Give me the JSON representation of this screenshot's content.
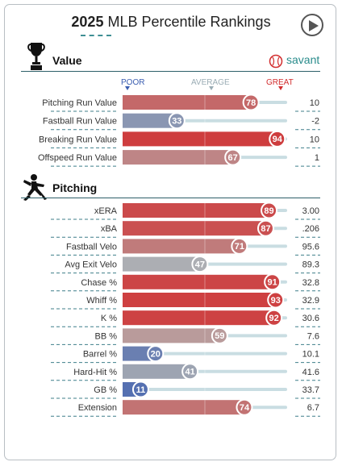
{
  "header": {
    "title_year": "2025",
    "title_rest": "MLB Percentile Rankings"
  },
  "brand": {
    "savant_label": "savant"
  },
  "scale": {
    "poor": "POOR",
    "average": "AVERAGE",
    "great": "GREAT"
  },
  "colors": {
    "low": "#3a5db0",
    "mid": "#b3b3b3",
    "high": "#d22d2e",
    "teal": "#2a8c8c",
    "track": "#c9dde2"
  },
  "sections": [
    {
      "title": "Value",
      "icon": "trophy-icon"
    },
    {
      "title": "Pitching",
      "icon": "pitcher-icon"
    }
  ],
  "chart_data": {
    "type": "bar",
    "xlim": [
      0,
      100
    ],
    "groups": [
      {
        "section": "Value",
        "rows": [
          {
            "label": "Pitching Run Value",
            "percentile": 78,
            "value": "10"
          },
          {
            "label": "Fastball Run Value",
            "percentile": 33,
            "value": "-2"
          },
          {
            "label": "Breaking Run Value",
            "percentile": 94,
            "value": "10"
          },
          {
            "label": "Offspeed Run Value",
            "percentile": 67,
            "value": "1"
          }
        ]
      },
      {
        "section": "Pitching",
        "rows": [
          {
            "label": "xERA",
            "percentile": 89,
            "value": "3.00"
          },
          {
            "label": "xBA",
            "percentile": 87,
            "value": ".206"
          },
          {
            "label": "Fastball Velo",
            "percentile": 71,
            "value": "95.6"
          },
          {
            "label": "Avg Exit Velo",
            "percentile": 47,
            "value": "89.3"
          },
          {
            "label": "Chase %",
            "percentile": 91,
            "value": "32.8"
          },
          {
            "label": "Whiff %",
            "percentile": 93,
            "value": "32.9"
          },
          {
            "label": "K %",
            "percentile": 92,
            "value": "30.6"
          },
          {
            "label": "BB %",
            "percentile": 59,
            "value": "7.6"
          },
          {
            "label": "Barrel %",
            "percentile": 20,
            "value": "10.1"
          },
          {
            "label": "Hard-Hit %",
            "percentile": 41,
            "value": "41.6"
          },
          {
            "label": "GB %",
            "percentile": 11,
            "value": "33.7"
          },
          {
            "label": "Extension",
            "percentile": 74,
            "value": "6.7"
          }
        ]
      }
    ]
  }
}
